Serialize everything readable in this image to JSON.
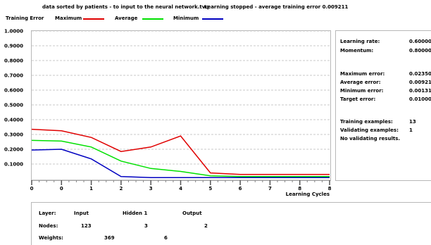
{
  "header": {
    "title": "data sorted by patients - to input to the neural network.tvq",
    "status": "Learning stopped - average training error 0.009211"
  },
  "legend": {
    "title": "Training Error",
    "items": [
      {
        "label": "Maximum",
        "color": "#e00000"
      },
      {
        "label": "Average",
        "color": "#00e000"
      },
      {
        "label": "Minimum",
        "color": "#0000c0"
      }
    ]
  },
  "chart_data": {
    "type": "line",
    "xlabel": "Learning Cycles",
    "x_tick_labels": [
      "0",
      "0",
      "1",
      "2",
      "3",
      "4",
      "5",
      "6",
      "7",
      "8",
      "8"
    ],
    "y_tick_labels": [
      "0.1000",
      "0.2000",
      "0.3000",
      "0.4000",
      "0.5000",
      "0.6000",
      "0.7000",
      "0.8000",
      "0.9000",
      "1.0000"
    ],
    "ylim": [
      0,
      1.0
    ],
    "grid": true,
    "x": [
      0,
      1,
      2,
      3,
      4,
      5,
      6,
      7,
      8,
      9,
      10
    ],
    "series": [
      {
        "name": "Maximum",
        "color": "#e00000",
        "values": [
          0.335,
          0.325,
          0.28,
          0.185,
          0.215,
          0.29,
          0.04,
          0.03,
          0.03,
          0.03,
          0.03
        ]
      },
      {
        "name": "Average",
        "color": "#00e000",
        "values": [
          0.26,
          0.255,
          0.215,
          0.12,
          0.07,
          0.05,
          0.02,
          0.015,
          0.015,
          0.015,
          0.015
        ]
      },
      {
        "name": "Minimum",
        "color": "#0000c0",
        "values": [
          0.195,
          0.2,
          0.135,
          0.015,
          0.008,
          0.008,
          0.008,
          0.008,
          0.008,
          0.008,
          0.008
        ]
      }
    ]
  },
  "stats": {
    "learning_rate_label": "Learning rate:",
    "learning_rate": "0.600000",
    "momentum_label": "Momentum:",
    "momentum": "0.800000",
    "max_error_label": "Maximum error:",
    "max_error": "0.023504",
    "avg_error_label": "Average error:",
    "avg_error": "0.009211",
    "min_error_label": "Minimum error:",
    "min_error": "0.001315",
    "target_error_label": "Target error:",
    "target_error": "0.010000",
    "training_examples_label": "Training examples:",
    "training_examples": "13",
    "validating_examples_label": "Validating examples:",
    "validating_examples": "1",
    "no_validating": "No validating results."
  },
  "network": {
    "layer_label": "Layer:",
    "nodes_label": "Nodes:",
    "weights_label": "Weights:",
    "layers": [
      "Input",
      "Hidden 1",
      "Output"
    ],
    "nodes": [
      "123",
      "3",
      "2"
    ],
    "weights": [
      "369",
      "6"
    ]
  }
}
